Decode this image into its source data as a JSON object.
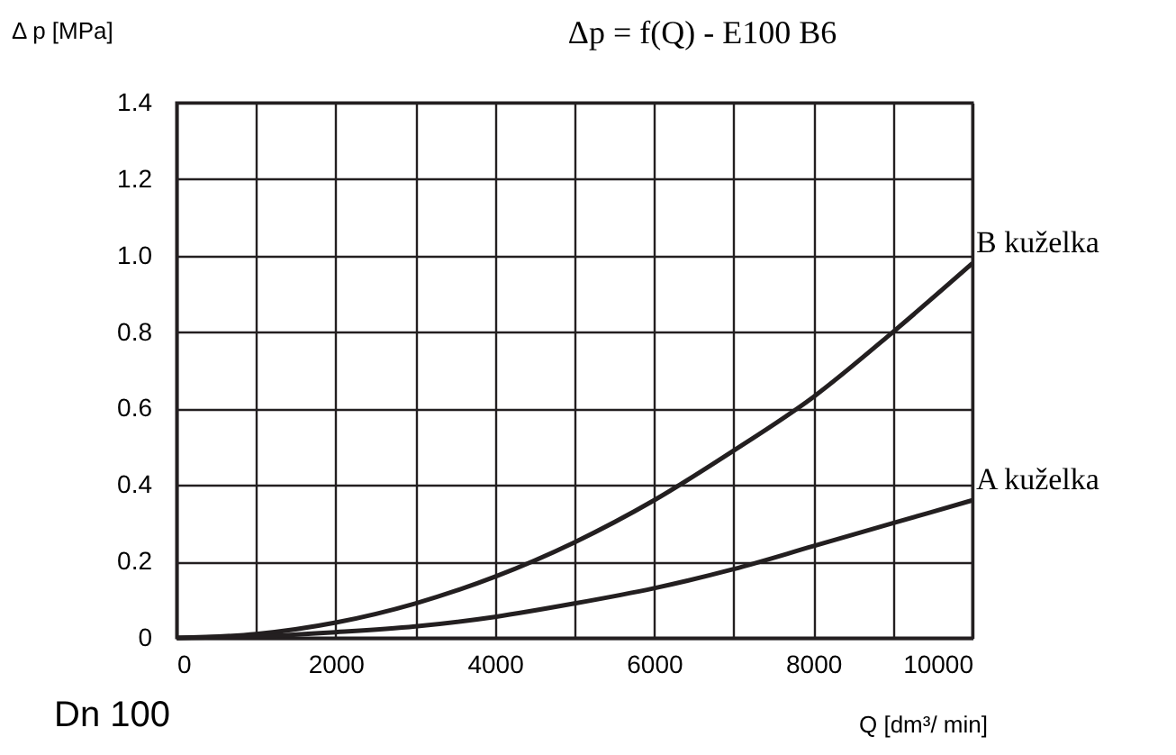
{
  "chart_data": {
    "type": "line",
    "title": "Δp = f(Q) - E100 B6",
    "xlabel": "Q [dm³/ min]",
    "ylabel": "Δ p [MPa]",
    "annotations": [
      "Dn 100"
    ],
    "x": [
      0,
      1000,
      2000,
      3000,
      4000,
      5000,
      6000,
      7000,
      8000,
      9000,
      10000
    ],
    "series": [
      {
        "name": "B kuželka",
        "color": "#231f20",
        "values": [
          0,
          0.01,
          0.04,
          0.09,
          0.16,
          0.25,
          0.36,
          0.49,
          0.63,
          0.8,
          0.98
        ]
      },
      {
        "name": "A kuželka",
        "color": "#231f20",
        "values": [
          0,
          0.004,
          0.015,
          0.03,
          0.055,
          0.09,
          0.13,
          0.18,
          0.24,
          0.3,
          0.36
        ]
      }
    ],
    "xlim": [
      0,
      10000
    ],
    "ylim": [
      0,
      1.4
    ],
    "xticks": [
      0,
      {
        "value": 1000,
        "label": null
      },
      2000,
      {
        "value": 3000,
        "label": null
      },
      4000,
      {
        "value": 5000,
        "label": null
      },
      6000,
      {
        "value": 7000,
        "label": null
      },
      8000,
      {
        "value": 9000,
        "label": null
      },
      10000
    ],
    "yticks": [
      0,
      0.2,
      0.4,
      0.6,
      0.8,
      {
        "value": 1,
        "label": "1.0"
      },
      1.2,
      1.4
    ],
    "grid": true,
    "marker": "none",
    "line_style": "solid"
  }
}
